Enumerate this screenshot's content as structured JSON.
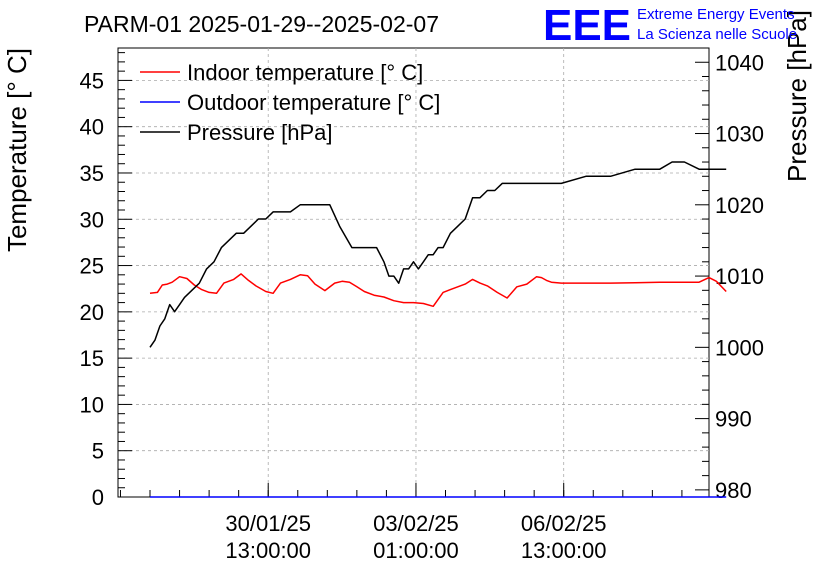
{
  "chart_data": {
    "type": "line",
    "title": "PARM-01 2025-01-29--2025-02-07",
    "ylabel": "Temperature [° C]",
    "y2label": "Pressure [hPa]",
    "xlabel": "",
    "ylim": [
      0,
      48.5
    ],
    "y2lim": [
      979,
      1042
    ],
    "x_range_hours": [
      0,
      240
    ],
    "y_ticks": [
      0,
      5,
      10,
      15,
      20,
      25,
      30,
      35,
      40,
      45
    ],
    "y2_ticks": [
      980,
      990,
      1000,
      1010,
      1020,
      1030,
      1040
    ],
    "x_ticks": [
      {
        "hours": 61,
        "line1": "30/01/25",
        "line2": "13:00:00"
      },
      {
        "hours": 121,
        "line1": "03/02/25",
        "line2": "01:00:00"
      },
      {
        "hours": 181,
        "line1": "06/02/25",
        "line2": "13:00:00"
      }
    ],
    "grid": true,
    "legend_position": "top-left",
    "series": [
      {
        "name": "Indoor temperature [° C]",
        "color": "#ff0000",
        "axis": "left",
        "x": [
          13,
          16,
          18,
          20,
          22,
          25,
          28,
          31,
          34,
          37,
          40,
          43,
          47,
          50,
          53,
          56,
          60,
          63,
          66,
          70,
          74,
          77,
          80,
          84,
          88,
          91,
          94,
          97,
          100,
          104,
          108,
          112,
          116,
          120,
          124,
          128,
          132,
          135,
          138,
          141,
          144,
          147,
          150,
          154,
          158,
          162,
          166,
          170,
          172,
          174,
          176,
          180,
          190,
          200,
          210,
          220,
          230,
          236,
          240,
          243,
          247
        ],
        "values": [
          22.0,
          22.1,
          22.9,
          23.0,
          23.2,
          23.8,
          23.6,
          22.9,
          22.4,
          22.1,
          22.0,
          23.1,
          23.5,
          24.1,
          23.4,
          22.8,
          22.2,
          22.0,
          23.1,
          23.5,
          24.0,
          23.9,
          23.0,
          22.3,
          23.1,
          23.3,
          23.2,
          22.7,
          22.2,
          21.8,
          21.6,
          21.2,
          21.0,
          21.0,
          20.9,
          20.6,
          22.1,
          22.4,
          22.7,
          23.0,
          23.5,
          23.1,
          22.8,
          22.1,
          21.5,
          22.7,
          23.0,
          23.8,
          23.7,
          23.4,
          23.2,
          23.1,
          23.1,
          23.1,
          23.15,
          23.2,
          23.2,
          23.2,
          23.7,
          23.3,
          22.2
        ]
      },
      {
        "name": "Outdoor temperature [° C]",
        "color": "#0000ff",
        "axis": "left",
        "x": [
          13,
          247
        ],
        "values": [
          0.0,
          0.0
        ]
      },
      {
        "name": "Pressure [hPa]",
        "color": "#000000",
        "axis": "right",
        "x": [
          13,
          15,
          17,
          19,
          21,
          23,
          25,
          27,
          30,
          33,
          36,
          39,
          42,
          45,
          48,
          51,
          54,
          57,
          60,
          63,
          66,
          70,
          74,
          78,
          82,
          86,
          90,
          95,
          100,
          105,
          108,
          110,
          112,
          114,
          116,
          118,
          120,
          122,
          124,
          126,
          128,
          130,
          132,
          135,
          138,
          141,
          144,
          147,
          150,
          153,
          156,
          158,
          160,
          165,
          170,
          180,
          190,
          200,
          210,
          215,
          220,
          225,
          230,
          236,
          240,
          243,
          247
        ],
        "values": [
          1000,
          1001,
          1003,
          1004,
          1006,
          1005,
          1006,
          1007,
          1008,
          1009,
          1011,
          1012,
          1014,
          1015,
          1016,
          1016,
          1017,
          1018,
          1018,
          1019,
          1019,
          1019,
          1020,
          1020,
          1020,
          1020,
          1017,
          1014,
          1014,
          1014,
          1012,
          1010,
          1010,
          1009,
          1011,
          1011,
          1012,
          1011,
          1012,
          1013,
          1013,
          1014,
          1014,
          1016,
          1017,
          1018,
          1021,
          1021,
          1022,
          1022,
          1023,
          1023,
          1023,
          1023,
          1023,
          1023,
          1024,
          1024,
          1025,
          1025,
          1025,
          1026,
          1026,
          1025,
          1025,
          1025,
          1025
        ]
      }
    ]
  },
  "logo": {
    "mark": "EEE",
    "line1": "Extreme Energy Events",
    "line2": "La Scienza nelle Scuole",
    "color": "#0000ff"
  }
}
